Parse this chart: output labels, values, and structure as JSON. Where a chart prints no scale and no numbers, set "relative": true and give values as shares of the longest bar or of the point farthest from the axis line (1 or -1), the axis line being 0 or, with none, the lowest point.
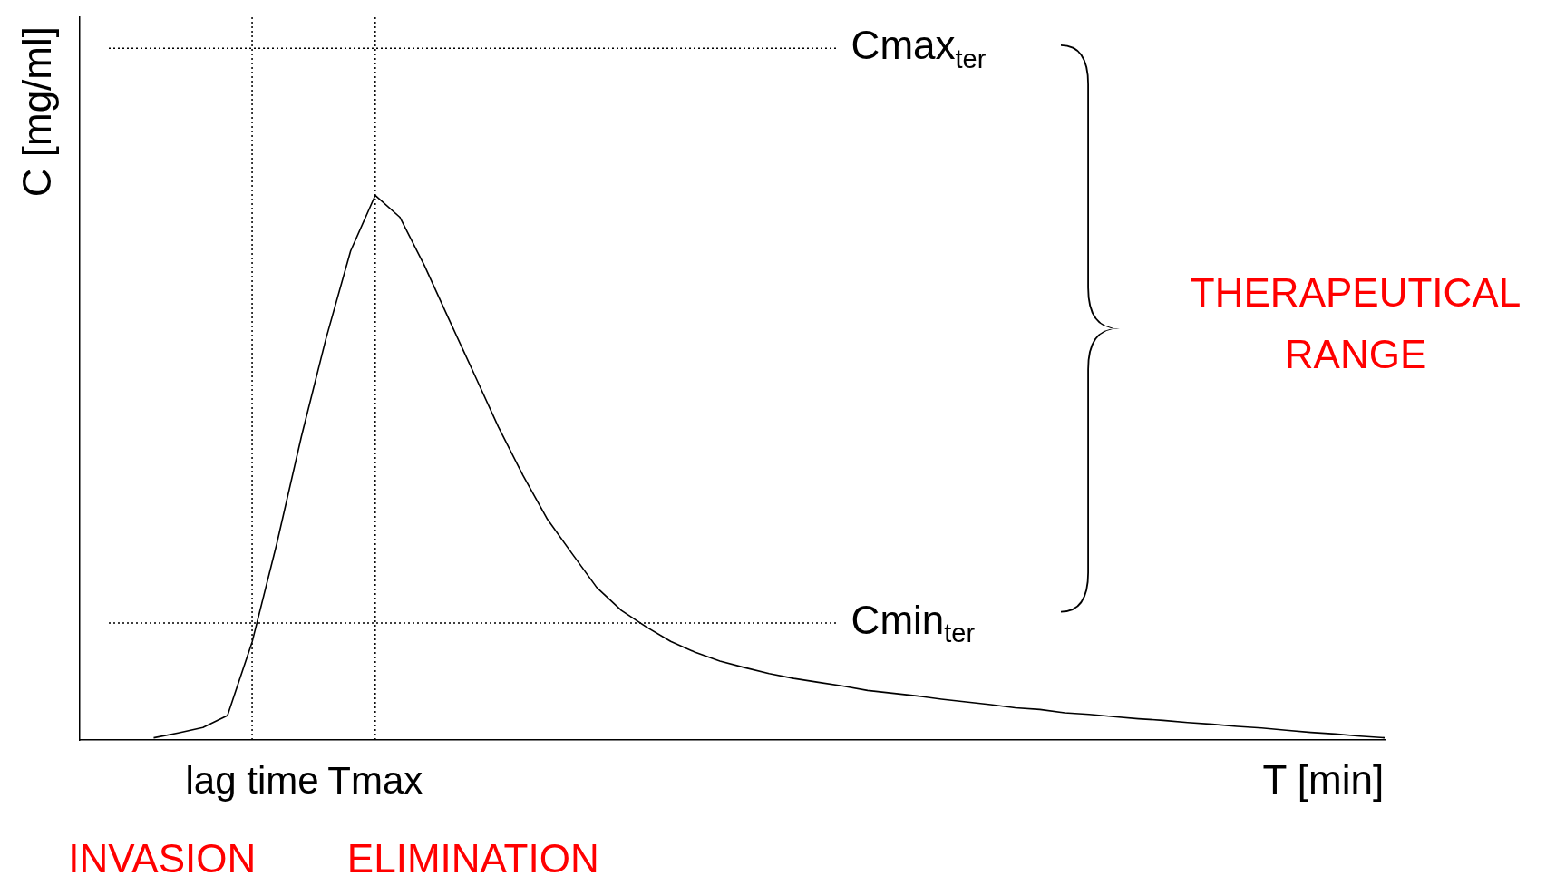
{
  "chart_data": {
    "type": "line",
    "relative": true,
    "ylabel": "C [mg/ml]",
    "xlabel": "T [min]",
    "categories": [
      null,
      null,
      null,
      null,
      null,
      null,
      null,
      "lag time",
      null,
      null,
      null,
      null,
      "Tmax",
      null,
      null,
      null,
      null,
      null,
      null,
      null,
      null,
      null,
      null,
      null,
      null,
      null,
      null,
      null,
      null,
      null,
      null,
      null,
      null,
      null,
      null,
      null,
      null,
      null,
      null,
      null,
      null,
      null,
      null,
      null,
      null,
      null,
      null,
      null,
      null,
      null,
      null,
      null,
      null,
      null
    ],
    "series": [
      {
        "color": "#000000",
        "values": [
          null,
          null,
          null,
          0.004,
          0.013,
          0.023,
          0.045,
          0.18,
          0.36,
          0.557,
          0.737,
          0.898,
          1.0,
          0.96,
          0.871,
          0.772,
          0.674,
          0.575,
          0.486,
          0.405,
          0.342,
          0.28,
          0.238,
          0.208,
          0.181,
          0.161,
          0.145,
          0.133,
          0.122,
          0.113,
          0.106,
          0.099,
          0.091,
          0.086,
          0.081,
          0.075,
          0.07,
          0.065,
          0.059,
          0.056,
          0.05,
          0.047,
          0.043,
          0.039,
          0.036,
          0.032,
          0.029,
          0.025,
          0.022,
          0.018,
          0.014,
          0.011,
          0.007,
          0.004
        ]
      }
    ],
    "ref_lines": [
      {
        "axis": "x",
        "value": "lag time",
        "line_style": "dotted"
      },
      {
        "axis": "x",
        "value": "Tmax",
        "line_style": "dotted"
      },
      {
        "axis": "y",
        "value": 1.27,
        "label": "Cmax$_{ter}$",
        "line_style": "dotted"
      },
      {
        "axis": "y",
        "value": 0.215,
        "label": "Cmin$_{ter}$",
        "line_style": "dotted"
      }
    ],
    "annotations": [
      "INVASION",
      "ELIMINATION",
      "THERAPEUTICAL RANGE"
    ],
    "line_style": "solid"
  }
}
